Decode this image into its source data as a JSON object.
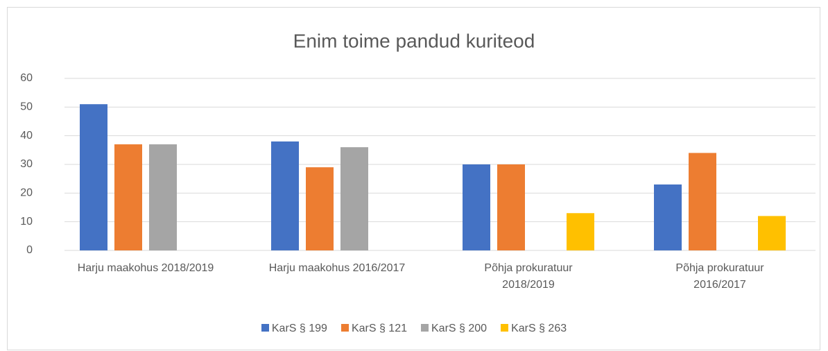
{
  "chart_data": {
    "type": "bar",
    "title": "Enim toime pandud kuriteod",
    "categories": [
      "Harju maakohus 2018/2019",
      "Harju maakohus 2016/2017",
      "Põhja prokuratuur\n2018/2019",
      "Põhja prokuratuur\n2016/2017"
    ],
    "series": [
      {
        "name": "KarS § 199",
        "color": "#4472c4",
        "values": [
          51,
          38,
          30,
          23
        ]
      },
      {
        "name": "KarS § 121",
        "color": "#ed7d31",
        "values": [
          37,
          29,
          30,
          34
        ]
      },
      {
        "name": "KarS § 200",
        "color": "#a5a5a5",
        "values": [
          37,
          36,
          null,
          null
        ]
      },
      {
        "name": "KarS § 263",
        "color": "#ffc000",
        "values": [
          null,
          null,
          13,
          12
        ]
      }
    ],
    "ylim": [
      0,
      60
    ],
    "yticks": [
      0,
      10,
      20,
      30,
      40,
      50,
      60
    ],
    "grid": true,
    "legend": "bottom"
  }
}
